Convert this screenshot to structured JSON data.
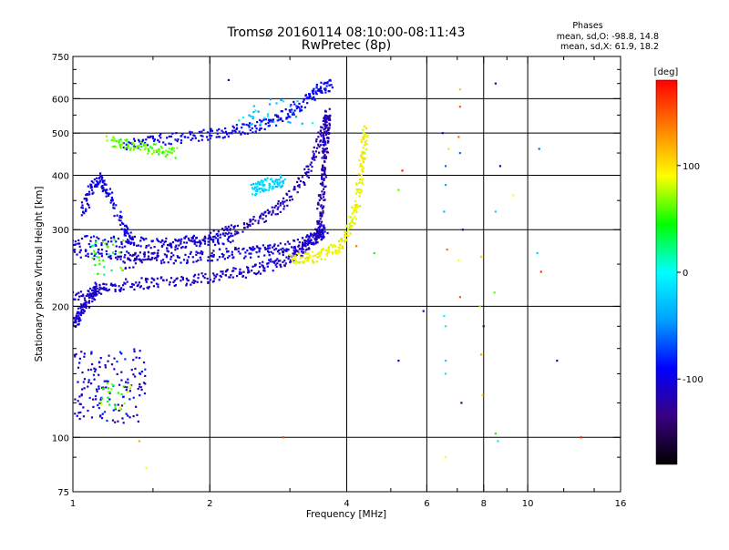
{
  "chart_data": {
    "type": "scatter",
    "title": "Tromsø 20160114 08:10:00-08:11:43",
    "subtitle": "RwPretec (8p)",
    "xlabel": "Frequency [MHz]",
    "ylabel": "Stationary phase Virtual Height [km]",
    "x_scale": "log",
    "y_scale": "log",
    "xlim": [
      1,
      16
    ],
    "ylim": [
      75,
      750
    ],
    "x_ticks": [
      1,
      2,
      4,
      6,
      8,
      10,
      16
    ],
    "x_tick_labels": [
      "1",
      "2",
      "4",
      "6",
      "8",
      "10",
      "16"
    ],
    "x_minor_ticks": [
      1.5,
      3,
      5,
      7,
      9,
      12,
      14
    ],
    "y_ticks": [
      75,
      100,
      200,
      300,
      400,
      500,
      600,
      750
    ],
    "y_tick_labels": [
      "75",
      "100",
      "200",
      "300",
      "400",
      "500",
      "600",
      "750"
    ],
    "y_minor_ticks": [
      90,
      120,
      140,
      160,
      180,
      250,
      350,
      450,
      550,
      650,
      700
    ],
    "grid": true,
    "phases_box": {
      "title": "Phases",
      "line1": "mean, sd,O: -98.8, 14.8",
      "line2": "mean, sd,X:  61.9, 18.2"
    },
    "colorbar": {
      "label": "[deg]",
      "range": [
        -180,
        180
      ],
      "ticks": [
        100,
        0,
        -100
      ],
      "tick_labels": [
        "100",
        "0",
        "-100"
      ],
      "colors": [
        "#000000",
        "#3a0080",
        "#0000ff",
        "#00a0ff",
        "#00ffff",
        "#00ff00",
        "#ffff00",
        "#ff8000",
        "#ff0000"
      ]
    },
    "traces": [
      {
        "x": [
          1.0,
          1.15,
          1.3,
          1.5,
          1.8,
          2.1,
          2.4,
          2.7,
          3.0,
          3.2,
          3.4,
          3.55
        ],
        "y": [
          210,
          218,
          224,
          227,
          230,
          235,
          240,
          248,
          258,
          270,
          285,
          300
        ],
        "phase": -110
      },
      {
        "x": [
          1.0,
          1.2,
          1.4,
          1.7,
          2.0,
          2.3,
          2.6,
          2.9,
          3.2,
          3.45,
          3.6
        ],
        "y": [
          268,
          262,
          258,
          258,
          262,
          265,
          268,
          272,
          280,
          290,
          300
        ],
        "phase": -105
      },
      {
        "x": [
          1.0,
          1.2,
          1.45,
          1.7,
          2.0,
          2.3
        ],
        "y": [
          282,
          282,
          280,
          280,
          284,
          288
        ],
        "phase": -100
      },
      {
        "x": [
          1.3,
          1.5,
          1.8,
          2.1,
          2.4,
          2.7,
          3.0,
          3.3,
          3.5,
          3.65
        ],
        "y": [
          250,
          265,
          280,
          292,
          305,
          325,
          355,
          410,
          490,
          560
        ],
        "phase": -115
      },
      {
        "x": [
          3.45,
          3.5,
          3.55,
          3.58,
          3.6,
          3.62,
          3.64
        ],
        "y": [
          290,
          330,
          380,
          430,
          480,
          520,
          560
        ],
        "phase": -120
      },
      {
        "x": [
          3.0,
          3.3,
          3.6,
          3.85,
          4.05,
          4.2,
          4.3,
          4.35,
          4.4
        ],
        "y": [
          255,
          258,
          264,
          275,
          300,
          340,
          400,
          460,
          520
        ],
        "phase": 90
      },
      {
        "x": [
          1.3,
          1.5,
          1.8,
          2.1,
          2.4,
          2.7,
          3.0,
          3.3,
          3.5,
          3.7
        ],
        "y": [
          470,
          480,
          490,
          500,
          510,
          530,
          560,
          600,
          630,
          645
        ],
        "phase": -95
      },
      {
        "x": [
          1.2,
          1.35,
          1.5,
          1.7
        ],
        "y": [
          480,
          470,
          460,
          450
        ],
        "phase": 60
      },
      {
        "x": [
          1.0,
          1.03,
          1.06,
          1.1,
          1.14
        ],
        "y": [
          180,
          190,
          200,
          212,
          222
        ],
        "phase": -110
      },
      {
        "x": [
          1.05,
          1.1,
          1.15,
          1.2,
          1.3,
          1.35
        ],
        "y": [
          330,
          370,
          395,
          360,
          300,
          280
        ],
        "phase": -100
      },
      {
        "x": [
          2.5,
          2.6,
          2.75,
          2.9
        ],
        "y": [
          370,
          378,
          384,
          390
        ],
        "phase": -20
      }
    ],
    "clusters": [
      {
        "x_range": [
          1.0,
          1.45
        ],
        "y_range": [
          108,
          160
        ],
        "phase": -105,
        "count": 150
      },
      {
        "x_range": [
          1.15,
          1.35
        ],
        "y_range": [
          115,
          135
        ],
        "phase": 60,
        "count": 25
      },
      {
        "x_range": [
          1.1,
          1.3
        ],
        "y_range": [
          235,
          285
        ],
        "phase": 40,
        "count": 30
      },
      {
        "x_range": [
          2.3,
          3.4
        ],
        "y_range": [
          520,
          600
        ],
        "phase": -20,
        "count": 30
      }
    ],
    "scatter_points": [
      {
        "x": 6.6,
        "y": 150,
        "phase": -15
      },
      {
        "x": 6.6,
        "y": 140,
        "phase": -10
      },
      {
        "x": 6.55,
        "y": 190,
        "phase": -5
      },
      {
        "x": 6.6,
        "y": 180,
        "phase": 10
      },
      {
        "x": 6.65,
        "y": 270,
        "phase": 140
      },
      {
        "x": 6.6,
        "y": 380,
        "phase": -40
      },
      {
        "x": 6.55,
        "y": 330,
        "phase": -30
      },
      {
        "x": 6.5,
        "y": 500,
        "phase": -100
      },
      {
        "x": 6.7,
        "y": 460,
        "phase": 80
      },
      {
        "x": 6.6,
        "y": 420,
        "phase": -60
      },
      {
        "x": 6.6,
        "y": 90,
        "phase": 90
      },
      {
        "x": 7.1,
        "y": 630,
        "phase": 110
      },
      {
        "x": 7.05,
        "y": 490,
        "phase": 140
      },
      {
        "x": 7.1,
        "y": 575,
        "phase": 150
      },
      {
        "x": 7.2,
        "y": 300,
        "phase": -140
      },
      {
        "x": 7.1,
        "y": 210,
        "phase": 150
      },
      {
        "x": 7.15,
        "y": 120,
        "phase": -140
      },
      {
        "x": 7.05,
        "y": 255,
        "phase": 90
      },
      {
        "x": 7.1,
        "y": 450,
        "phase": -60
      },
      {
        "x": 7.9,
        "y": 260,
        "phase": 110
      },
      {
        "x": 7.85,
        "y": 200,
        "phase": 70
      },
      {
        "x": 7.9,
        "y": 155,
        "phase": 120
      },
      {
        "x": 8.0,
        "y": 180,
        "phase": -150
      },
      {
        "x": 7.95,
        "y": 125,
        "phase": 100
      },
      {
        "x": 8.5,
        "y": 650,
        "phase": -130
      },
      {
        "x": 8.7,
        "y": 420,
        "phase": -100
      },
      {
        "x": 8.5,
        "y": 330,
        "phase": -20
      },
      {
        "x": 8.45,
        "y": 215,
        "phase": 60
      },
      {
        "x": 8.5,
        "y": 102,
        "phase": 40
      },
      {
        "x": 8.6,
        "y": 98,
        "phase": -10
      },
      {
        "x": 9.3,
        "y": 360,
        "phase": 90
      },
      {
        "x": 10.6,
        "y": 460,
        "phase": -60
      },
      {
        "x": 10.7,
        "y": 240,
        "phase": 160
      },
      {
        "x": 10.5,
        "y": 265,
        "phase": -20
      },
      {
        "x": 11.6,
        "y": 150,
        "phase": -110
      },
      {
        "x": 13.1,
        "y": 100,
        "phase": 170
      },
      {
        "x": 5.3,
        "y": 410,
        "phase": 170
      },
      {
        "x": 5.2,
        "y": 370,
        "phase": 60
      },
      {
        "x": 5.9,
        "y": 195,
        "phase": -110
      },
      {
        "x": 5.2,
        "y": 150,
        "phase": -100
      },
      {
        "x": 4.2,
        "y": 275,
        "phase": 140
      },
      {
        "x": 4.6,
        "y": 265,
        "phase": 40
      },
      {
        "x": 2.9,
        "y": 100,
        "phase": 160
      },
      {
        "x": 2.2,
        "y": 662,
        "phase": -120
      },
      {
        "x": 1.4,
        "y": 98,
        "phase": 120
      },
      {
        "x": 1.45,
        "y": 85,
        "phase": 90
      }
    ]
  }
}
